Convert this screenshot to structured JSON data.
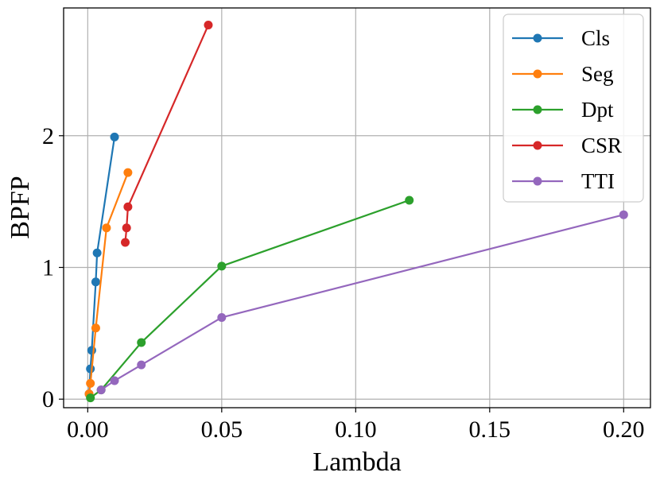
{
  "chart_data": {
    "type": "line",
    "title": "",
    "xlabel": "Lambda",
    "ylabel": "BPFP",
    "xlim": [
      -0.009,
      0.21
    ],
    "ylim": [
      -0.065,
      2.97
    ],
    "xticks": [
      0.0,
      0.05,
      0.1,
      0.15,
      0.2
    ],
    "xtick_labels": [
      "0.00",
      "0.05",
      "0.10",
      "0.15",
      "0.20"
    ],
    "yticks": [
      0,
      1,
      2
    ],
    "ytick_labels": [
      "0",
      "1",
      "2"
    ],
    "grid": true,
    "legend_position": "top-right",
    "series": [
      {
        "name": "Cls",
        "color": "#1f77b4",
        "x": [
          0.0005,
          0.001,
          0.0015,
          0.003,
          0.0035,
          0.01
        ],
        "y": [
          0.04,
          0.23,
          0.37,
          0.89,
          1.11,
          1.99
        ]
      },
      {
        "name": "Seg",
        "color": "#ff7f0e",
        "x": [
          0.0005,
          0.001,
          0.003,
          0.007,
          0.015
        ],
        "y": [
          0.04,
          0.12,
          0.54,
          1.3,
          1.72
        ]
      },
      {
        "name": "Dpt",
        "color": "#2ca02c",
        "x": [
          0.001,
          0.005,
          0.02,
          0.05,
          0.12
        ],
        "y": [
          0.01,
          0.07,
          0.43,
          1.01,
          1.51
        ]
      },
      {
        "name": "CSR",
        "color": "#d62728",
        "x": [
          0.014,
          0.0145,
          0.015,
          0.045
        ],
        "y": [
          1.19,
          1.3,
          1.46,
          2.84
        ]
      },
      {
        "name": "TTI",
        "color": "#9467bd",
        "x": [
          0.005,
          0.01,
          0.02,
          0.05,
          0.2
        ],
        "y": [
          0.07,
          0.14,
          0.26,
          0.62,
          1.4
        ]
      }
    ]
  }
}
